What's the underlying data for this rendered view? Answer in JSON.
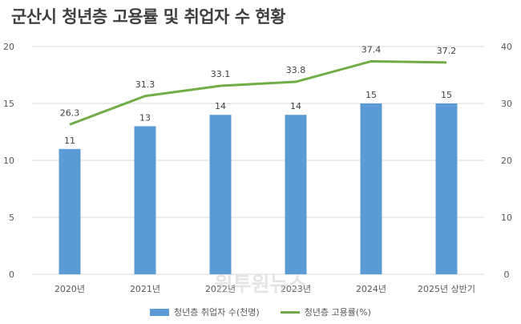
{
  "title": "군산시 청년층 고용률 및 취업자 수 현황",
  "watermark": "원투원뉴스",
  "chart_data": {
    "type": "bar",
    "categories": [
      "2020년",
      "2021년",
      "2022년",
      "2023년",
      "2024년",
      "2025년 상반기"
    ],
    "series": [
      {
        "name": "청년층 취업자 수(천명)",
        "type": "bar",
        "axis": "left",
        "values": [
          11,
          13,
          14,
          14,
          15,
          15
        ],
        "color": "#5B9BD5"
      },
      {
        "name": "청년층 고용률(%)",
        "type": "line",
        "axis": "right",
        "values": [
          26.3,
          31.3,
          33.1,
          33.8,
          37.4,
          37.2
        ],
        "color": "#70AD47"
      }
    ],
    "left_axis": {
      "ylim": [
        0,
        20
      ],
      "ticks": [
        0,
        5,
        10,
        15,
        20
      ]
    },
    "right_axis": {
      "ylim": [
        0,
        40
      ],
      "ticks": [
        0,
        10,
        20,
        30,
        40
      ]
    },
    "legend_position": "bottom",
    "grid": true
  }
}
